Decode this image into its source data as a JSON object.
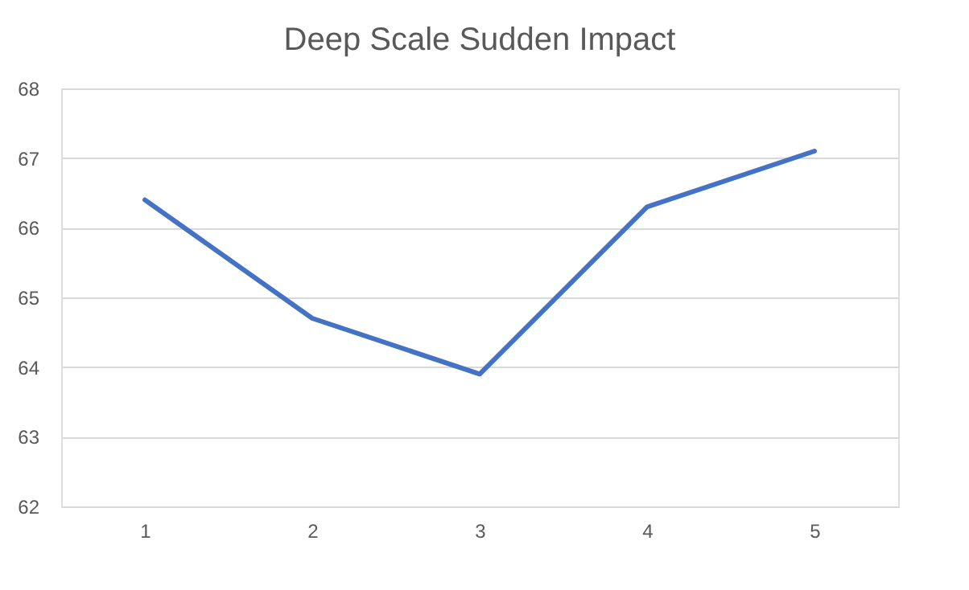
{
  "chart_data": {
    "type": "line",
    "title": "Deep Scale Sudden Impact",
    "categories": [
      "1",
      "2",
      "3",
      "4",
      "5"
    ],
    "series": [
      {
        "color": "#4472c4",
        "values": [
          66.4,
          64.7,
          63.9,
          66.3,
          67.1
        ]
      }
    ],
    "ylim": [
      62,
      68
    ],
    "yticks": [
      62,
      63,
      64,
      65,
      66,
      67,
      68
    ],
    "grid": "y",
    "marker": "none",
    "line_style": "solid"
  }
}
